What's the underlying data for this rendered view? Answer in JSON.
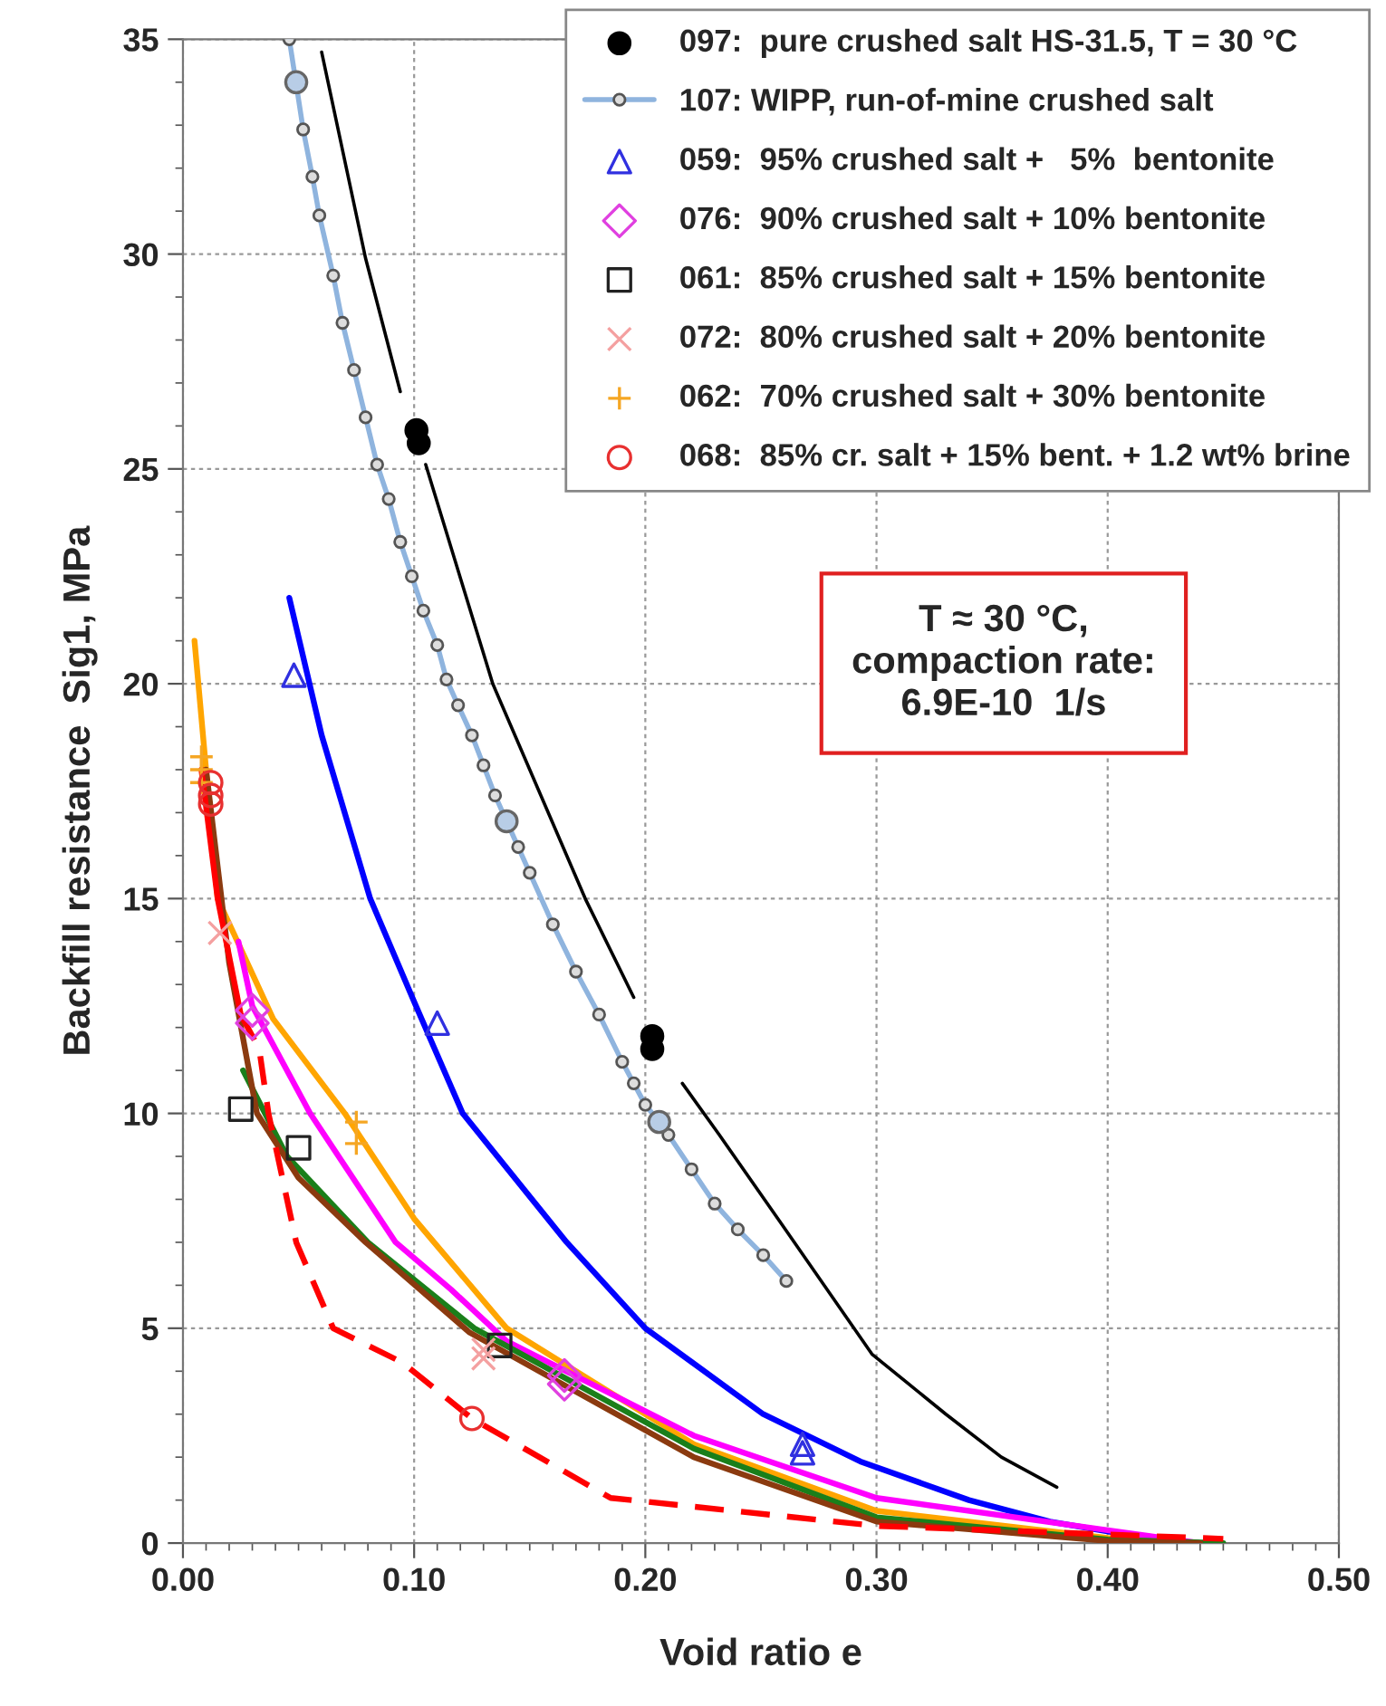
{
  "chart_data": {
    "type": "line",
    "xlabel": "Void ratio e",
    "ylabel": "Backfill resistance  Sig1, MPa",
    "xlim": [
      0,
      0.5
    ],
    "ylim": [
      0,
      35
    ],
    "xticks": [
      {
        "value": 0,
        "label": "0.00"
      },
      {
        "value": 0.1,
        "label": "0.10"
      },
      {
        "value": 0.2,
        "label": "0.20"
      },
      {
        "value": 0.3,
        "label": "0.30"
      },
      {
        "value": 0.4,
        "label": "0.40"
      },
      {
        "value": 0.5,
        "label": "0.50"
      }
    ],
    "yticks": [
      0,
      5,
      10,
      15,
      20,
      25,
      30,
      35
    ],
    "grid": true,
    "legend": "top right",
    "annotations": [
      "T ≈ 30 °C,\ncompaction rate:\n6.9E-10  1/s"
    ],
    "series": [
      {
        "name": "097:  pure crushed salt HS-31.5, T = 30 °C",
        "type": "scatter",
        "marker": "circle",
        "color": "#000000",
        "x": [
          0.101,
          0.102,
          0.203,
          0.203
        ],
        "values": [
          25.9,
          25.6,
          11.8,
          11.5
        ]
      },
      {
        "name": "107: WIPP, run-of-mine crushed salt",
        "marker": "circle",
        "color": "#8fb4de",
        "x": [
          0.046,
          0.052,
          0.056,
          0.059,
          0.065,
          0.069,
          0.074,
          0.079,
          0.084,
          0.089,
          0.094,
          0.099,
          0.104,
          0.11,
          0.114,
          0.119,
          0.125,
          0.13,
          0.135,
          0.14,
          0.145,
          0.15,
          0.16,
          0.17,
          0.18,
          0.19,
          0.195,
          0.2,
          0.206,
          0.21,
          0.22,
          0.23,
          0.24,
          0.251,
          0.261
        ],
        "values": [
          35.0,
          32.9,
          31.8,
          30.9,
          29.5,
          28.4,
          27.3,
          26.2,
          25.1,
          24.3,
          23.3,
          22.5,
          21.7,
          20.9,
          20.1,
          19.5,
          18.8,
          18.1,
          17.4,
          16.8,
          16.2,
          15.6,
          14.4,
          13.3,
          12.3,
          11.2,
          10.7,
          10.2,
          9.8,
          9.5,
          8.7,
          7.9,
          7.3,
          6.7,
          6.1
        ]
      },
      {
        "name": "059:  95% crushed salt +   5%  bentonite",
        "type": "scatter",
        "marker": "triangle",
        "color": "#3030e0",
        "x": [
          0.048,
          0.11,
          0.268,
          0.268
        ],
        "values": [
          20.2,
          12.1,
          2.3,
          2.1
        ]
      },
      {
        "name": "076:  90% crushed salt + 10% bentonite",
        "type": "scatter",
        "marker": "diamond",
        "color": "#e040e0",
        "x": [
          0.03,
          0.03,
          0.165,
          0.165
        ],
        "values": [
          12.4,
          12.1,
          3.9,
          3.7
        ]
      },
      {
        "name": "061:  85% crushed salt + 15% bentonite",
        "type": "scatter",
        "marker": "square",
        "color": "#222222",
        "x": [
          0.025,
          0.05,
          0.137
        ],
        "values": [
          10.1,
          9.2,
          4.6
        ]
      },
      {
        "name": "072:  80% crushed salt + 20% bentonite",
        "type": "scatter",
        "marker": "cross",
        "color": "#f4a0a0",
        "x": [
          0.016,
          0.13,
          0.13
        ],
        "values": [
          14.2,
          4.5,
          4.3
        ]
      },
      {
        "name": "062:  70% crushed salt + 30% bentonite",
        "type": "scatter",
        "marker": "plus",
        "color": "#f5a623",
        "x": [
          0.008,
          0.008,
          0.008,
          0.075,
          0.075
        ],
        "values": [
          18.3,
          18.0,
          17.7,
          9.8,
          9.3
        ]
      },
      {
        "name": "068:  85% cr. salt + 15% bent. + 1.2 wt% brine",
        "type": "scatter",
        "marker": "circle",
        "color": "#e83030",
        "x": [
          0.012,
          0.012,
          0.012,
          0.125
        ],
        "values": [
          17.7,
          17.4,
          17.2,
          2.9
        ]
      },
      {
        "type": "scatter",
        "marker": "circle",
        "color": "#b8cde6",
        "x": [
          0.049,
          0.14,
          0.206
        ],
        "values": [
          34.0,
          16.8,
          9.8
        ]
      },
      {
        "color": "#000000",
        "x": [
          0.06,
          0.079,
          0.094,
          0.1,
          0.105,
          0.134,
          0.174,
          0.195,
          0.205,
          0.216,
          0.232,
          0.258,
          0.298,
          0.33,
          0.354,
          0.378
        ],
        "values": [
          34.7,
          29.9,
          26.8,
          null,
          25.1,
          20.0,
          15.0,
          12.7,
          null,
          10.7,
          9.5,
          7.5,
          4.4,
          3.0,
          2.0,
          1.3
        ]
      },
      {
        "color": "#0000ff",
        "x": [
          0.046,
          0.06,
          0.081,
          0.1,
          0.121,
          0.166,
          0.2,
          0.251,
          0.293,
          0.34,
          0.375,
          0.43
        ],
        "values": [
          22.0,
          18.8,
          15.0,
          12.6,
          10.0,
          7.0,
          5.0,
          3.0,
          1.9,
          1.0,
          0.5,
          0.0
        ]
      },
      {
        "color": "#ffa500",
        "x": [
          0.005,
          0.01,
          0.015,
          0.039,
          0.07,
          0.1,
          0.14,
          0.221,
          0.3,
          0.4,
          0.44
        ],
        "values": [
          21.0,
          18.0,
          15.0,
          12.2,
          10.0,
          7.55,
          5.0,
          2.3,
          0.75,
          0.12,
          0.0
        ]
      },
      {
        "color": "#ff00ff",
        "x": [
          0.024,
          0.03,
          0.055,
          0.092,
          0.116,
          0.14,
          0.221,
          0.3,
          0.4,
          0.44
        ],
        "values": [
          14.0,
          12.5,
          10.0,
          7.0,
          5.9,
          4.7,
          2.5,
          1.05,
          0.3,
          0.0
        ]
      },
      {
        "color": "#1a7f1a",
        "x": [
          0.026,
          0.045,
          0.08,
          0.126,
          0.221,
          0.3,
          0.4,
          0.45
        ],
        "values": [
          11.0,
          9.0,
          7.0,
          5.0,
          2.2,
          0.6,
          0.08,
          0.0
        ]
      },
      {
        "color": "#8b3a0f",
        "x": [
          0.01,
          0.02,
          0.032,
          0.05,
          0.079,
          0.124,
          0.221,
          0.3,
          0.4,
          0.44
        ],
        "values": [
          18.0,
          13.5,
          10.0,
          8.5,
          7.0,
          4.9,
          2.0,
          0.5,
          0.05,
          0.0
        ]
      },
      {
        "color": "#ff0000",
        "x": [
          0.008,
          0.015,
          0.025
        ],
        "values": [
          18.0,
          15.0,
          12.3
        ]
      },
      {
        "line_style": "dashed",
        "color": "#ff0000",
        "x": [
          0.025,
          0.033,
          0.037,
          0.049,
          0.065,
          0.095,
          0.125,
          0.185,
          0.3,
          0.4,
          0.45
        ],
        "values": [
          12.3,
          11.5,
          10.0,
          7.0,
          5.0,
          4.2,
          2.9,
          1.05,
          0.4,
          0.2,
          0.1
        ]
      }
    ]
  }
}
